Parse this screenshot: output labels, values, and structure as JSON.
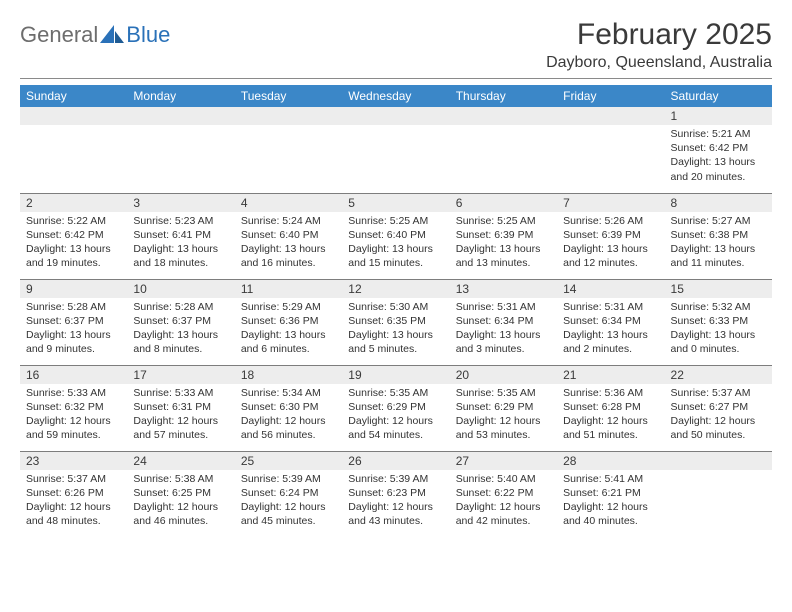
{
  "logo": {
    "text_gray": "General",
    "text_blue": "Blue"
  },
  "title": "February 2025",
  "location": "Dayboro, Queensland, Australia",
  "colors": {
    "header_bg": "#3b87c8",
    "header_text": "#ffffff",
    "daynum_bg": "#ededed",
    "rule": "#7d7d7d",
    "logo_gray": "#6d6d6d",
    "logo_blue": "#2a71b8"
  },
  "weekdays": [
    "Sunday",
    "Monday",
    "Tuesday",
    "Wednesday",
    "Thursday",
    "Friday",
    "Saturday"
  ],
  "weeks": [
    [
      null,
      null,
      null,
      null,
      null,
      null,
      {
        "n": "1",
        "sunrise": "Sunrise: 5:21 AM",
        "sunset": "Sunset: 6:42 PM",
        "day1": "Daylight: 13 hours",
        "day2": "and 20 minutes."
      }
    ],
    [
      {
        "n": "2",
        "sunrise": "Sunrise: 5:22 AM",
        "sunset": "Sunset: 6:42 PM",
        "day1": "Daylight: 13 hours",
        "day2": "and 19 minutes."
      },
      {
        "n": "3",
        "sunrise": "Sunrise: 5:23 AM",
        "sunset": "Sunset: 6:41 PM",
        "day1": "Daylight: 13 hours",
        "day2": "and 18 minutes."
      },
      {
        "n": "4",
        "sunrise": "Sunrise: 5:24 AM",
        "sunset": "Sunset: 6:40 PM",
        "day1": "Daylight: 13 hours",
        "day2": "and 16 minutes."
      },
      {
        "n": "5",
        "sunrise": "Sunrise: 5:25 AM",
        "sunset": "Sunset: 6:40 PM",
        "day1": "Daylight: 13 hours",
        "day2": "and 15 minutes."
      },
      {
        "n": "6",
        "sunrise": "Sunrise: 5:25 AM",
        "sunset": "Sunset: 6:39 PM",
        "day1": "Daylight: 13 hours",
        "day2": "and 13 minutes."
      },
      {
        "n": "7",
        "sunrise": "Sunrise: 5:26 AM",
        "sunset": "Sunset: 6:39 PM",
        "day1": "Daylight: 13 hours",
        "day2": "and 12 minutes."
      },
      {
        "n": "8",
        "sunrise": "Sunrise: 5:27 AM",
        "sunset": "Sunset: 6:38 PM",
        "day1": "Daylight: 13 hours",
        "day2": "and 11 minutes."
      }
    ],
    [
      {
        "n": "9",
        "sunrise": "Sunrise: 5:28 AM",
        "sunset": "Sunset: 6:37 PM",
        "day1": "Daylight: 13 hours",
        "day2": "and 9 minutes."
      },
      {
        "n": "10",
        "sunrise": "Sunrise: 5:28 AM",
        "sunset": "Sunset: 6:37 PM",
        "day1": "Daylight: 13 hours",
        "day2": "and 8 minutes."
      },
      {
        "n": "11",
        "sunrise": "Sunrise: 5:29 AM",
        "sunset": "Sunset: 6:36 PM",
        "day1": "Daylight: 13 hours",
        "day2": "and 6 minutes."
      },
      {
        "n": "12",
        "sunrise": "Sunrise: 5:30 AM",
        "sunset": "Sunset: 6:35 PM",
        "day1": "Daylight: 13 hours",
        "day2": "and 5 minutes."
      },
      {
        "n": "13",
        "sunrise": "Sunrise: 5:31 AM",
        "sunset": "Sunset: 6:34 PM",
        "day1": "Daylight: 13 hours",
        "day2": "and 3 minutes."
      },
      {
        "n": "14",
        "sunrise": "Sunrise: 5:31 AM",
        "sunset": "Sunset: 6:34 PM",
        "day1": "Daylight: 13 hours",
        "day2": "and 2 minutes."
      },
      {
        "n": "15",
        "sunrise": "Sunrise: 5:32 AM",
        "sunset": "Sunset: 6:33 PM",
        "day1": "Daylight: 13 hours",
        "day2": "and 0 minutes."
      }
    ],
    [
      {
        "n": "16",
        "sunrise": "Sunrise: 5:33 AM",
        "sunset": "Sunset: 6:32 PM",
        "day1": "Daylight: 12 hours",
        "day2": "and 59 minutes."
      },
      {
        "n": "17",
        "sunrise": "Sunrise: 5:33 AM",
        "sunset": "Sunset: 6:31 PM",
        "day1": "Daylight: 12 hours",
        "day2": "and 57 minutes."
      },
      {
        "n": "18",
        "sunrise": "Sunrise: 5:34 AM",
        "sunset": "Sunset: 6:30 PM",
        "day1": "Daylight: 12 hours",
        "day2": "and 56 minutes."
      },
      {
        "n": "19",
        "sunrise": "Sunrise: 5:35 AM",
        "sunset": "Sunset: 6:29 PM",
        "day1": "Daylight: 12 hours",
        "day2": "and 54 minutes."
      },
      {
        "n": "20",
        "sunrise": "Sunrise: 5:35 AM",
        "sunset": "Sunset: 6:29 PM",
        "day1": "Daylight: 12 hours",
        "day2": "and 53 minutes."
      },
      {
        "n": "21",
        "sunrise": "Sunrise: 5:36 AM",
        "sunset": "Sunset: 6:28 PM",
        "day1": "Daylight: 12 hours",
        "day2": "and 51 minutes."
      },
      {
        "n": "22",
        "sunrise": "Sunrise: 5:37 AM",
        "sunset": "Sunset: 6:27 PM",
        "day1": "Daylight: 12 hours",
        "day2": "and 50 minutes."
      }
    ],
    [
      {
        "n": "23",
        "sunrise": "Sunrise: 5:37 AM",
        "sunset": "Sunset: 6:26 PM",
        "day1": "Daylight: 12 hours",
        "day2": "and 48 minutes."
      },
      {
        "n": "24",
        "sunrise": "Sunrise: 5:38 AM",
        "sunset": "Sunset: 6:25 PM",
        "day1": "Daylight: 12 hours",
        "day2": "and 46 minutes."
      },
      {
        "n": "25",
        "sunrise": "Sunrise: 5:39 AM",
        "sunset": "Sunset: 6:24 PM",
        "day1": "Daylight: 12 hours",
        "day2": "and 45 minutes."
      },
      {
        "n": "26",
        "sunrise": "Sunrise: 5:39 AM",
        "sunset": "Sunset: 6:23 PM",
        "day1": "Daylight: 12 hours",
        "day2": "and 43 minutes."
      },
      {
        "n": "27",
        "sunrise": "Sunrise: 5:40 AM",
        "sunset": "Sunset: 6:22 PM",
        "day1": "Daylight: 12 hours",
        "day2": "and 42 minutes."
      },
      {
        "n": "28",
        "sunrise": "Sunrise: 5:41 AM",
        "sunset": "Sunset: 6:21 PM",
        "day1": "Daylight: 12 hours",
        "day2": "and 40 minutes."
      },
      null
    ]
  ]
}
